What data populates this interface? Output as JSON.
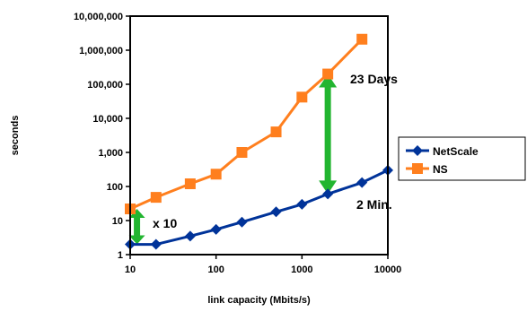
{
  "chart_data": {
    "type": "line",
    "xscale": "log",
    "yscale": "log",
    "xlim": [
      10,
      10000
    ],
    "ylim": [
      1,
      10000000
    ],
    "xlabel": "link capacity (Mbits/s)",
    "ylabel": "seconds",
    "grid": false,
    "legend_position": "right",
    "x_ticks": [
      "10",
      "100",
      "1000",
      "10000"
    ],
    "y_ticks": [
      "1",
      "10",
      "100",
      "1,000",
      "10,000",
      "100,000",
      "1,000,000",
      "10,000,000"
    ],
    "series": [
      {
        "name": "NetScale",
        "color": "#003399",
        "marker": "diamond",
        "x": [
          10,
          20,
          50,
          100,
          200,
          500,
          1000,
          2000,
          5000,
          10000
        ],
        "y": [
          2,
          2,
          3.5,
          5.5,
          9,
          18,
          30,
          60,
          130,
          300
        ]
      },
      {
        "name": "NS",
        "color": "#ff7f1e",
        "marker": "square",
        "x": [
          10,
          20,
          50,
          100,
          200,
          500,
          1000,
          2000,
          5000
        ],
        "y": [
          22,
          48,
          120,
          230,
          1000,
          4000,
          42000,
          200000,
          2100000
        ]
      }
    ],
    "annotations": [
      {
        "text": "x 10",
        "arrow_x": 12,
        "arrow_y": [
          2,
          22
        ]
      },
      {
        "text": "23 Days"
      },
      {
        "text": "2 Min.",
        "arrow_x": 2000,
        "arrow_y": [
          60,
          200000
        ]
      }
    ],
    "arrow_color": "#22b530"
  }
}
